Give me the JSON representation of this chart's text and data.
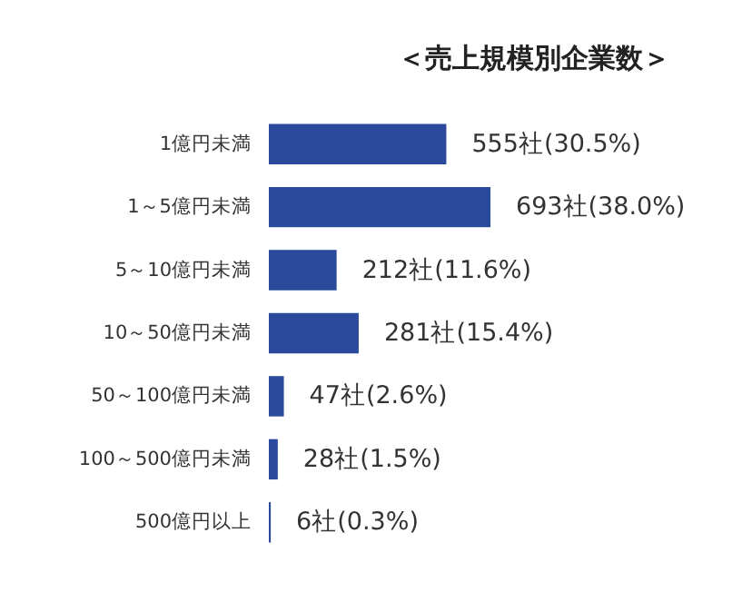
{
  "chart_data": {
    "type": "bar",
    "orientation": "horizontal",
    "title": "＜売上規模別企業数＞",
    "categories": [
      "1億円未満",
      "1～5億円未満",
      "5～10億円未満",
      "10～50億円未満",
      "50～100億円未満",
      "100～500億円未満",
      "500億円以上"
    ],
    "values": [
      555,
      693,
      212,
      281,
      47,
      28,
      6
    ],
    "value_labels": [
      "555社(30.5%)",
      "693社(38.0%)",
      "212社(11.6%)",
      "281社(15.4%)",
      "47社(2.6%)",
      "28社(1.5%)",
      "6社(0.3%)"
    ],
    "color": "#2b4a9c"
  }
}
